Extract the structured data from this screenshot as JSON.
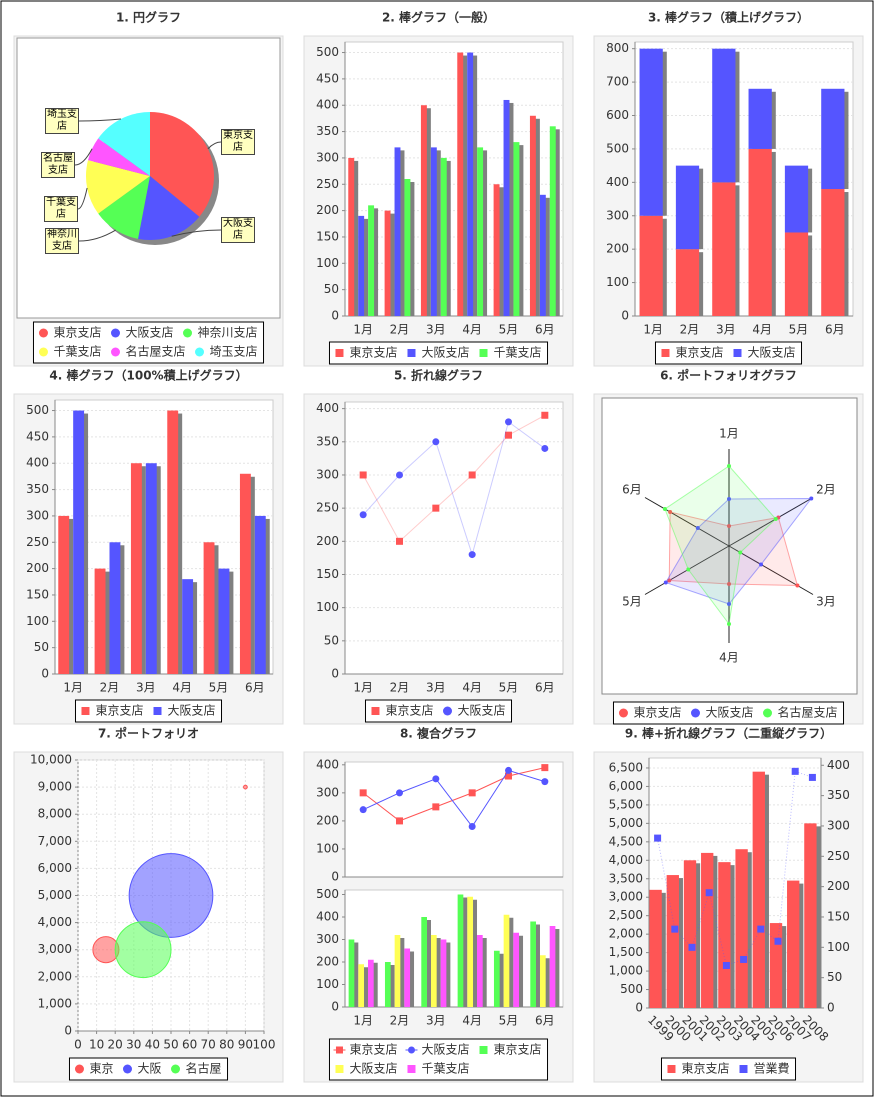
{
  "chart_data": [
    {
      "type": "pie",
      "title": "1. 円グラフ",
      "categories": [
        "東京支店",
        "大阪支店",
        "神奈川支店",
        "千葉支店",
        "名古屋支店",
        "埼玉支店"
      ],
      "values": [
        36,
        17,
        12,
        14,
        6,
        15
      ],
      "colors": [
        "#ff5555",
        "#5555ff",
        "#55ff55",
        "#ffff55",
        "#ff55ff",
        "#55ffff"
      ]
    },
    {
      "type": "bar",
      "title": "2. 棒グラフ（一般）",
      "categories": [
        "1月",
        "2月",
        "3月",
        "4月",
        "5月",
        "6月"
      ],
      "series": [
        {
          "name": "東京支店",
          "color": "#ff5555",
          "values": [
            300,
            200,
            400,
            500,
            250,
            380
          ]
        },
        {
          "name": "大阪支店",
          "color": "#5555ff",
          "values": [
            190,
            320,
            320,
            500,
            410,
            230
          ]
        },
        {
          "name": "千葉支店",
          "color": "#55ff55",
          "values": [
            210,
            260,
            300,
            320,
            330,
            360
          ]
        }
      ],
      "ylim": [
        0,
        520
      ],
      "yticks": [
        0,
        50,
        100,
        150,
        200,
        250,
        300,
        350,
        400,
        450,
        500
      ],
      "grid": true
    },
    {
      "type": "stacked_bar",
      "title": "3. 棒グラフ（積上げグラフ）",
      "categories": [
        "1月",
        "2月",
        "3月",
        "4月",
        "5月",
        "6月"
      ],
      "series": [
        {
          "name": "東京支店",
          "color": "#ff5555",
          "values": [
            300,
            200,
            400,
            500,
            250,
            380
          ]
        },
        {
          "name": "大阪支店",
          "color": "#5555ff",
          "values": [
            500,
            250,
            400,
            180,
            200,
            300
          ]
        }
      ],
      "ylim": [
        0,
        820
      ],
      "yticks": [
        0,
        100,
        200,
        300,
        400,
        500,
        600,
        700,
        800
      ],
      "grid": true
    },
    {
      "type": "bar",
      "title": "4. 棒グラフ（100%積上げグラフ）",
      "categories": [
        "1月",
        "2月",
        "3月",
        "4月",
        "5月",
        "6月"
      ],
      "series": [
        {
          "name": "東京支店",
          "color": "#ff5555",
          "values": [
            300,
            200,
            400,
            500,
            250,
            380
          ]
        },
        {
          "name": "大阪支店",
          "color": "#5555ff",
          "values": [
            500,
            250,
            400,
            180,
            200,
            300
          ]
        }
      ],
      "ylim": [
        0,
        520
      ],
      "yticks": [
        0,
        50,
        100,
        150,
        200,
        250,
        300,
        350,
        400,
        450,
        500
      ],
      "grid": true
    },
    {
      "type": "line",
      "title": "5. 折れ線グラフ",
      "categories": [
        "1月",
        "2月",
        "3月",
        "4月",
        "5月",
        "6月"
      ],
      "series": [
        {
          "name": "東京支店",
          "color": "#ff5555",
          "marker": "square",
          "values": [
            300,
            200,
            250,
            300,
            360,
            390
          ]
        },
        {
          "name": "大阪支店",
          "color": "#5555ff",
          "marker": "circle",
          "values": [
            240,
            300,
            350,
            180,
            380,
            340
          ]
        }
      ],
      "ylim": [
        0,
        410
      ],
      "yticks": [
        0,
        50,
        100,
        150,
        200,
        250,
        300,
        350,
        400
      ],
      "grid": true
    },
    {
      "type": "radar",
      "title": "6. ポートフォリオグラフ",
      "categories": [
        "1月",
        "2月",
        "3月",
        "4月",
        "5月",
        "6月"
      ],
      "series": [
        {
          "name": "東京支店",
          "color": "#ff5555",
          "values": [
            20,
            57,
            79,
            38,
            69,
            68
          ]
        },
        {
          "name": "大阪支店",
          "color": "#5555ff",
          "values": [
            47,
            95,
            37,
            58,
            73,
            36
          ]
        },
        {
          "name": "名古屋支店",
          "color": "#55ff55",
          "values": [
            80,
            54,
            13,
            78,
            47,
            74
          ]
        }
      ]
    },
    {
      "type": "bubble",
      "title": "7. ポートフォリオ",
      "series": [
        {
          "name": "東京",
          "color": "#ff5555",
          "x": [
            15,
            90
          ],
          "y": [
            3000,
            9000
          ],
          "size": [
            14,
            2
          ]
        },
        {
          "name": "大阪",
          "color": "#5555ff",
          "x": [
            50
          ],
          "y": [
            5000
          ],
          "size": [
            45
          ]
        },
        {
          "name": "名古屋",
          "color": "#55ff55",
          "x": [
            35
          ],
          "y": [
            3000
          ],
          "size": [
            30
          ]
        }
      ],
      "xlim": [
        0,
        100
      ],
      "xticks": [
        0,
        10,
        20,
        30,
        40,
        50,
        60,
        70,
        80,
        90,
        100
      ],
      "ylim": [
        0,
        10000
      ],
      "yticks": [
        0,
        {
          "value": 1000,
          "label": "1,000"
        },
        {
          "value": 2000,
          "label": "2,000"
        },
        {
          "value": 3000,
          "label": "3,000"
        },
        {
          "value": 4000,
          "label": "4,000"
        },
        {
          "value": 5000,
          "label": "5,000"
        },
        {
          "value": 6000,
          "label": "6,000"
        },
        {
          "value": 7000,
          "label": "7,000"
        },
        {
          "value": 8000,
          "label": "8,000"
        },
        {
          "value": 9000,
          "label": "9,000"
        },
        {
          "value": 10000,
          "label": "10,000"
        }
      ],
      "grid": true
    },
    {
      "type": "combined",
      "title": "8. 複合グラフ",
      "categories": [
        "1月",
        "2月",
        "3月",
        "4月",
        "5月",
        "6月"
      ],
      "line": {
        "ylim": [
          0,
          410
        ],
        "yticks": [
          0,
          100,
          200,
          300,
          400
        ],
        "series": [
          {
            "name": "東京支店",
            "color": "#ff5555",
            "marker": "square",
            "values": [
              300,
              200,
              250,
              300,
              360,
              390
            ]
          },
          {
            "name": "大阪支店",
            "color": "#5555ff",
            "marker": "circle",
            "values": [
              240,
              300,
              350,
              180,
              380,
              340
            ]
          }
        ]
      },
      "bar": {
        "ylim": [
          0,
          520
        ],
        "yticks": [
          0,
          100,
          200,
          300,
          400,
          500
        ],
        "series": [
          {
            "name": "東京支店",
            "color": "#55ff55",
            "values": [
              300,
              200,
              400,
              500,
              250,
              380
            ]
          },
          {
            "name": "大阪支店",
            "color": "#ffff55",
            "values": [
              190,
              320,
              320,
              490,
              410,
              230
            ]
          },
          {
            "name": "千葉支店",
            "color": "#ff55ff",
            "values": [
              210,
              260,
              300,
              320,
              330,
              360
            ]
          }
        ]
      },
      "grid": true
    },
    {
      "type": "bar_line",
      "title": "9. 棒+折れ線グラフ（二重縦グラフ）",
      "categories": [
        "1999",
        "2000",
        "2001",
        "2002",
        "2003",
        "2004",
        "2005",
        "2006",
        "2007",
        "2008"
      ],
      "series": [
        {
          "name": "東京支店",
          "color": "#ff5555",
          "values": [
            3200,
            3600,
            4000,
            4200,
            3950,
            4300,
            6400,
            2300,
            3450,
            5000
          ]
        },
        {
          "name": "営業費",
          "color": "#5555ff",
          "axis": "y2",
          "marker": "square",
          "values": [
            280,
            130,
            100,
            190,
            70,
            80,
            130,
            110,
            390,
            380
          ]
        }
      ],
      "ylim": [
        0,
        6770
      ],
      "yticks": [
        0,
        500,
        {
          "value": 1000,
          "label": "1,000"
        },
        {
          "value": 1500,
          "label": "1,500"
        },
        {
          "value": 2000,
          "label": "2,000"
        },
        {
          "value": 2500,
          "label": "2,500"
        },
        {
          "value": 3000,
          "label": "3,000"
        },
        {
          "value": 3500,
          "label": "3,500"
        },
        {
          "value": 4000,
          "label": "4,000"
        },
        {
          "value": 4500,
          "label": "4,500"
        },
        {
          "value": 5000,
          "label": "5,000"
        },
        {
          "value": 5500,
          "label": "5,500"
        },
        {
          "value": 6000,
          "label": "6,000"
        },
        {
          "value": 6500,
          "label": "6,500"
        }
      ],
      "y2lim": [
        0,
        412
      ],
      "y2ticks": [
        0,
        50,
        100,
        150,
        200,
        250,
        300,
        350,
        400
      ],
      "grid": true
    }
  ]
}
